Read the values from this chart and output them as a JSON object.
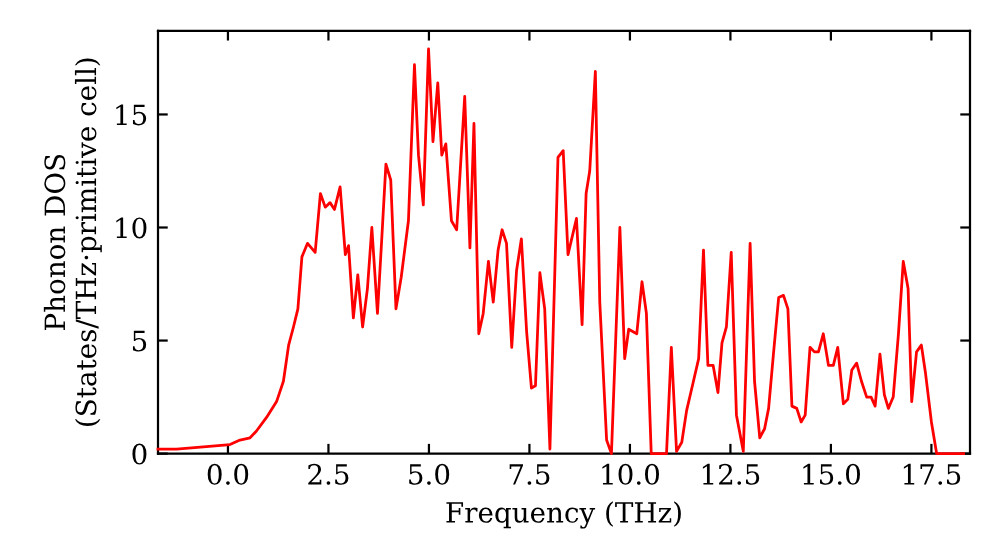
{
  "chart_data": {
    "type": "line",
    "xlabel": "Frequency (THz)",
    "ylabel": "Phonon DOS\n(States/THz·primitive cell)",
    "xlim": [
      -1.74,
      18.46
    ],
    "ylim": [
      0,
      18.7
    ],
    "xticks": [
      {
        "value": 0,
        "label": "0.0"
      },
      {
        "value": 2.5,
        "label": "2.5"
      },
      {
        "value": 5,
        "label": "5.0"
      },
      {
        "value": 7.5,
        "label": "7.5"
      },
      {
        "value": 10,
        "label": "10.0"
      },
      {
        "value": 12.5,
        "label": "12.5"
      },
      {
        "value": 15,
        "label": "15.0"
      },
      {
        "value": 17.5,
        "label": "17.5"
      }
    ],
    "yticks": [
      0,
      5,
      10,
      15
    ],
    "grid": false,
    "marker": "none",
    "line_style": "solid",
    "series": [
      {
        "color": "#ff0000",
        "x": [
          -1.74,
          -1.28,
          -0.61,
          0.05,
          0.3,
          0.55,
          0.71,
          0.96,
          1.21,
          1.38,
          1.51,
          1.63,
          1.74,
          1.84,
          1.98,
          2.17,
          2.3,
          2.42,
          2.54,
          2.65,
          2.79,
          2.92,
          3.0,
          3.12,
          3.23,
          3.35,
          3.47,
          3.58,
          3.72,
          3.82,
          3.93,
          4.05,
          4.18,
          4.31,
          4.49,
          4.64,
          4.74,
          4.86,
          4.99,
          5.1,
          5.22,
          5.32,
          5.42,
          5.56,
          5.69,
          5.89,
          6.02,
          6.12,
          6.24,
          6.35,
          6.48,
          6.6,
          6.72,
          6.82,
          6.93,
          7.06,
          7.18,
          7.3,
          7.43,
          7.55,
          7.65,
          7.76,
          7.88,
          8.01,
          8.21,
          8.34,
          8.46,
          8.67,
          8.81,
          8.91,
          9.0,
          9.14,
          9.25,
          9.42,
          9.54,
          9.75,
          9.87,
          9.97,
          10.17,
          10.3,
          10.41,
          10.53,
          10.91,
          11.03,
          11.16,
          11.29,
          11.41,
          11.58,
          11.71,
          11.83,
          11.94,
          12.07,
          12.19,
          12.29,
          12.4,
          12.52,
          12.65,
          12.82,
          12.99,
          13.1,
          13.23,
          13.35,
          13.45,
          13.57,
          13.7,
          13.82,
          13.93,
          14.03,
          14.15,
          14.26,
          14.36,
          14.48,
          14.59,
          14.69,
          14.81,
          14.94,
          15.06,
          15.17,
          15.31,
          15.42,
          15.52,
          15.64,
          15.76,
          15.89,
          16.0,
          16.1,
          16.22,
          16.33,
          16.43,
          16.55,
          16.68,
          16.8,
          16.92,
          17.01,
          17.13,
          17.25,
          17.35,
          17.5,
          17.63,
          18.3
        ],
        "values": [
          0.2,
          0.2,
          0.3,
          0.4,
          0.6,
          0.7,
          1.0,
          1.6,
          2.3,
          3.2,
          4.8,
          5.6,
          6.4,
          8.7,
          9.3,
          8.9,
          11.5,
          10.9,
          11.1,
          10.8,
          11.8,
          8.8,
          9.2,
          6.0,
          7.9,
          5.6,
          7.3,
          10.0,
          6.2,
          9.3,
          12.8,
          12.1,
          6.4,
          7.8,
          10.3,
          17.2,
          13.2,
          11.0,
          17.9,
          13.8,
          16.4,
          13.2,
          13.7,
          10.3,
          9.9,
          15.8,
          9.1,
          14.6,
          5.3,
          6.2,
          8.5,
          6.7,
          9.0,
          9.9,
          9.3,
          4.7,
          8.1,
          9.5,
          5.4,
          2.9,
          3.0,
          8.0,
          6.4,
          0.2,
          13.1,
          13.4,
          8.8,
          10.4,
          5.7,
          11.5,
          12.5,
          16.9,
          6.7,
          0.6,
          0,
          10.0,
          4.2,
          5.5,
          5.3,
          7.6,
          6.2,
          0,
          0,
          4.7,
          0.1,
          0.5,
          1.9,
          3.2,
          4.2,
          9.0,
          3.9,
          3.9,
          2.7,
          4.9,
          5.6,
          8.9,
          1.7,
          0.1,
          9.3,
          3.2,
          0.7,
          1.1,
          2.0,
          4.4,
          6.9,
          7.0,
          6.4,
          2.1,
          2.0,
          1.4,
          1.7,
          4.7,
          4.5,
          4.5,
          5.3,
          3.9,
          3.9,
          4.7,
          2.2,
          2.4,
          3.7,
          4.0,
          3.2,
          2.5,
          2.5,
          2.1,
          4.4,
          2.6,
          2.0,
          2.5,
          5.3,
          8.5,
          7.3,
          2.3,
          4.5,
          4.8,
          3.6,
          1.4,
          0,
          0
        ]
      }
    ]
  }
}
